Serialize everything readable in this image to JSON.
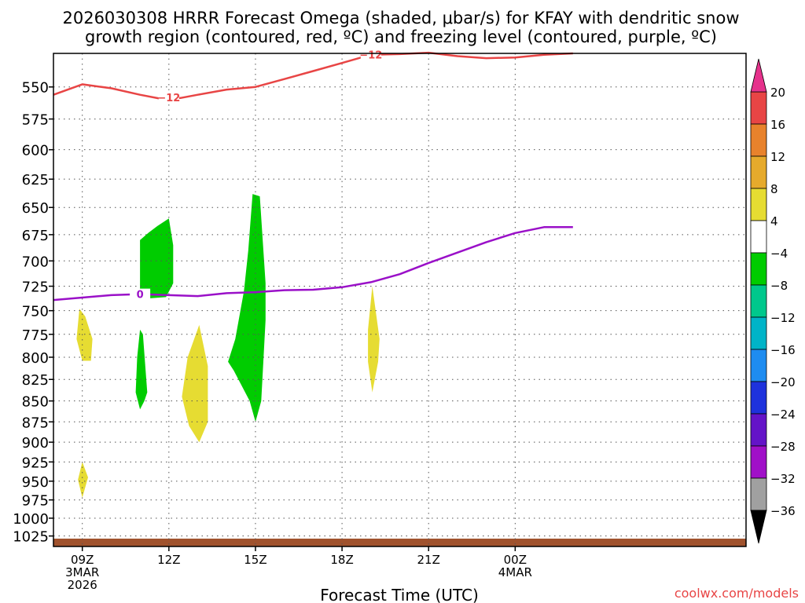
{
  "chart_data": {
    "type": "heatmap",
    "title_lines": [
      "2026030308 HRRR Forecast Omega (shaded, μbar/s) for KFAY with dendritic snow",
      "growth region (contoured, red, ºC) and freezing level (contoured, purple, ºC)"
    ],
    "xlabel": "Forecast Time (UTC)",
    "ylabel": "",
    "credit": "coolwx.com/models",
    "x_range": [
      8,
      32
    ],
    "y_range": [
      1040,
      525
    ],
    "y_scale": "log",
    "grid": true,
    "y_ticks": [
      550,
      575,
      600,
      625,
      650,
      675,
      700,
      725,
      750,
      775,
      800,
      825,
      850,
      875,
      900,
      925,
      950,
      975,
      1000,
      1025
    ],
    "x_ticks": [
      {
        "t": 9,
        "lines": [
          "09Z",
          "3MAR",
          "2026"
        ]
      },
      {
        "t": 12,
        "lines": [
          "12Z"
        ]
      },
      {
        "t": 15,
        "lines": [
          "15Z"
        ]
      },
      {
        "t": 18,
        "lines": [
          "18Z"
        ]
      },
      {
        "t": 21,
        "lines": [
          "21Z"
        ]
      },
      {
        "t": 24,
        "lines": [
          "00Z",
          "4MAR"
        ]
      }
    ],
    "dgz_contour": {
      "label": "−12",
      "color": "#e84545",
      "points": [
        [
          8.0,
          556
        ],
        [
          9.0,
          548
        ],
        [
          10.0,
          551
        ],
        [
          11.0,
          556
        ],
        [
          11.7,
          559
        ],
        [
          12.4,
          558.5
        ],
        [
          13.0,
          556
        ],
        [
          14.0,
          552
        ],
        [
          15.0,
          550
        ],
        [
          16.0,
          544
        ],
        [
          17.0,
          538
        ],
        [
          18.0,
          532
        ],
        [
          19.0,
          526
        ],
        [
          20.0,
          525.5
        ],
        [
          21.0,
          524.5
        ],
        [
          22.0,
          527
        ],
        [
          23.0,
          528.5
        ],
        [
          24.0,
          528
        ],
        [
          25.0,
          526
        ],
        [
          26.0,
          525
        ]
      ],
      "label_points": [
        [
          12.0,
          558
        ],
        [
          19.0,
          526
        ]
      ]
    },
    "freezing_level": {
      "label": "0",
      "color": "#9a10c8",
      "points": [
        [
          8.0,
          739
        ],
        [
          9.0,
          736.5
        ],
        [
          10.0,
          734
        ],
        [
          11.0,
          733
        ],
        [
          12.0,
          734
        ],
        [
          13.0,
          735
        ],
        [
          14.0,
          732
        ],
        [
          15.0,
          731
        ],
        [
          16.0,
          729
        ],
        [
          17.0,
          728.5
        ],
        [
          18.0,
          726
        ],
        [
          19.0,
          721
        ],
        [
          20.0,
          713
        ],
        [
          21.0,
          702
        ],
        [
          22.0,
          692
        ],
        [
          23.0,
          682
        ],
        [
          24.0,
          673.5
        ],
        [
          25.0,
          668
        ],
        [
          26.0,
          668
        ]
      ],
      "label_points": [
        [
          11.0,
          733
        ]
      ]
    },
    "omega_regions": [
      {
        "class": "-8 to -4",
        "color": "#00cc00",
        "points": [
          [
            11.0,
            680
          ],
          [
            11.3,
            673
          ],
          [
            11.6,
            667
          ],
          [
            12.0,
            660
          ],
          [
            12.15,
            685
          ],
          [
            12.15,
            722
          ],
          [
            11.9,
            736
          ],
          [
            11.0,
            738
          ]
        ]
      },
      {
        "class": "-8 to -4",
        "color": "#00cc00",
        "points": [
          [
            11.0,
            770
          ],
          [
            11.1,
            775
          ],
          [
            11.25,
            840
          ],
          [
            11.15,
            850
          ],
          [
            11.0,
            860
          ],
          [
            10.85,
            840
          ],
          [
            10.9,
            800
          ]
        ]
      },
      {
        "class": "-8 to -4",
        "color": "#00cc00",
        "points": [
          [
            14.9,
            638
          ],
          [
            15.15,
            640
          ],
          [
            15.35,
            722
          ],
          [
            15.35,
            760
          ],
          [
            15.2,
            850
          ],
          [
            15.0,
            875
          ],
          [
            14.8,
            850
          ],
          [
            14.25,
            815
          ],
          [
            14.05,
            805
          ],
          [
            14.3,
            780
          ],
          [
            14.6,
            730
          ],
          [
            14.75,
            690
          ]
        ]
      },
      {
        "class": "4 to 8",
        "color": "#e6dc32",
        "points": [
          [
            8.9,
            748
          ],
          [
            9.1,
            756
          ],
          [
            9.35,
            780
          ],
          [
            9.3,
            804
          ],
          [
            9.0,
            804
          ],
          [
            8.8,
            780
          ]
        ]
      },
      {
        "class": "4 to 8",
        "color": "#e6dc32",
        "points": [
          [
            13.05,
            765
          ],
          [
            13.35,
            810
          ],
          [
            13.35,
            875
          ],
          [
            13.05,
            900
          ],
          [
            12.7,
            880
          ],
          [
            12.45,
            845
          ],
          [
            12.65,
            800
          ]
        ]
      },
      {
        "class": "4 to 8",
        "color": "#e6dc32",
        "points": [
          [
            9.0,
            925
          ],
          [
            9.2,
            945
          ],
          [
            9.0,
            972
          ],
          [
            8.85,
            948
          ]
        ]
      },
      {
        "class": "4 to 8",
        "color": "#e6dc32",
        "points": [
          [
            19.05,
            725
          ],
          [
            19.3,
            780
          ],
          [
            19.25,
            805
          ],
          [
            19.05,
            840
          ],
          [
            18.9,
            805
          ],
          [
            18.9,
            770
          ]
        ]
      }
    ],
    "colorbar": {
      "levels": [
        20,
        16,
        12,
        8,
        4,
        -4,
        -8,
        -12,
        -16,
        -20,
        -24,
        -28,
        -32,
        -36
      ],
      "colors": [
        "#e6328c",
        "#e84545",
        "#e8822c",
        "#e6aa2c",
        "#e6dc32",
        "#ffffff",
        "#00cc00",
        "#00c88c",
        "#00b4c8",
        "#1e8cf0",
        "#1e32dc",
        "#6414c8",
        "#a010c8",
        "#a0a0a0",
        "#000000"
      ]
    }
  }
}
